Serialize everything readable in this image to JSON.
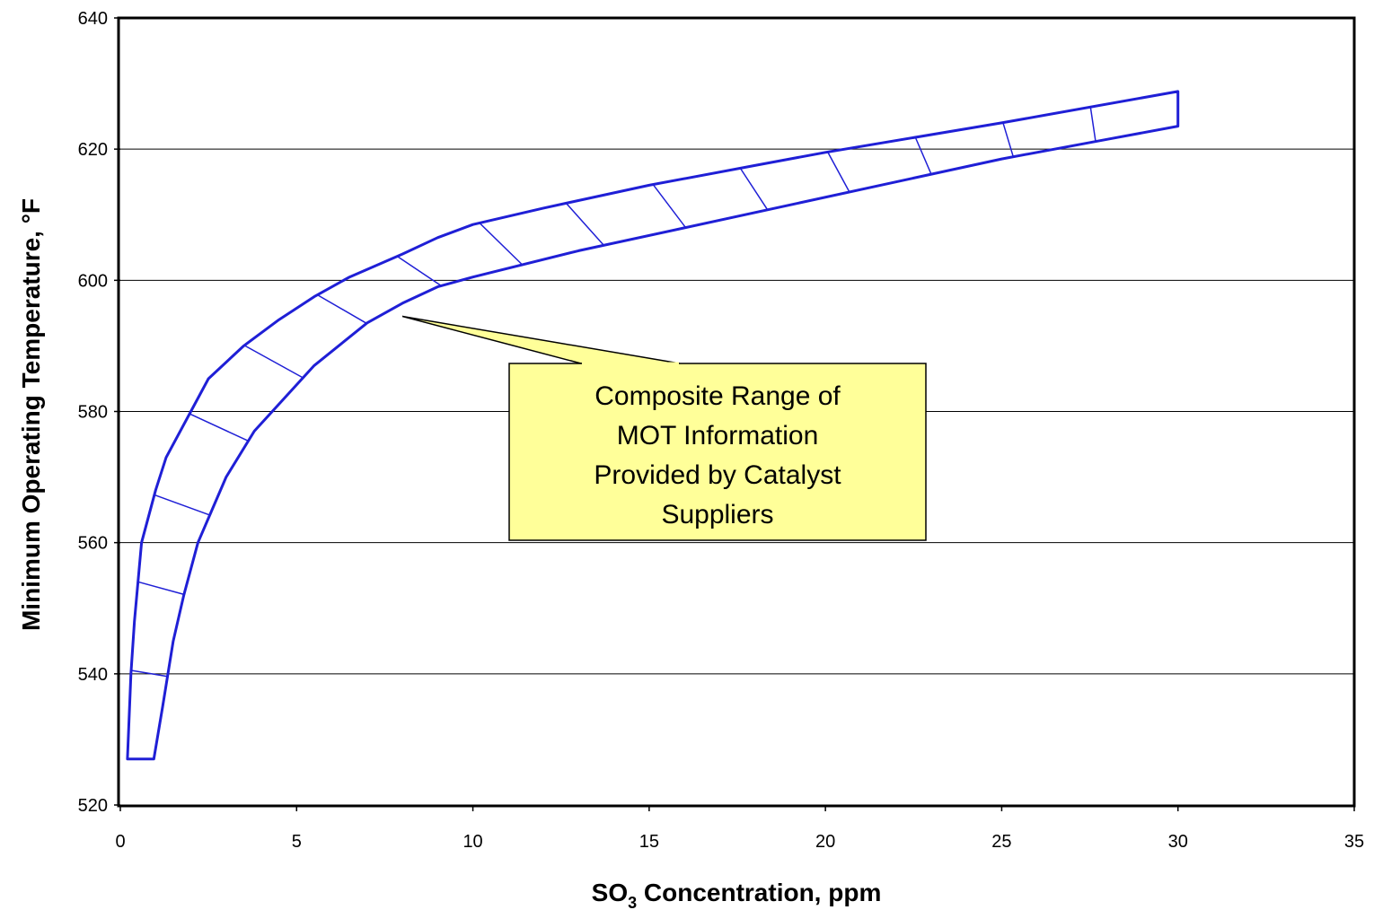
{
  "chart_data": {
    "type": "area",
    "xlabel": "SO",
    "xlabel_subscript": "3",
    "xlabel_suffix": " Concentration, ppm",
    "ylabel": "Minimum Operating Temperature, °F",
    "xlim": [
      0,
      35
    ],
    "ylim": [
      520,
      640
    ],
    "x_ticks": [
      0,
      5,
      10,
      15,
      20,
      25,
      30,
      35
    ],
    "y_ticks": [
      520,
      540,
      560,
      580,
      600,
      620,
      640
    ],
    "grid": "horizontal",
    "band": {
      "upper": [
        [
          0.2,
          527
        ],
        [
          0.3,
          540
        ],
        [
          0.4,
          548
        ],
        [
          0.6,
          560
        ],
        [
          1.0,
          568
        ],
        [
          1.3,
          573
        ],
        [
          2.0,
          580
        ],
        [
          2.5,
          585
        ],
        [
          3.5,
          590
        ],
        [
          4.5,
          594
        ],
        [
          5.5,
          597.5
        ],
        [
          6.5,
          600.5
        ],
        [
          8.0,
          604
        ],
        [
          9.0,
          606.5
        ],
        [
          10.0,
          608.5
        ],
        [
          12.0,
          611
        ],
        [
          15.0,
          614.5
        ],
        [
          18.0,
          617.5
        ],
        [
          20.0,
          619.5
        ],
        [
          25.0,
          624
        ],
        [
          30.0,
          628.8
        ]
      ],
      "lower": [
        [
          0.95,
          527
        ],
        [
          1.2,
          535
        ],
        [
          1.5,
          545
        ],
        [
          1.8,
          552
        ],
        [
          2.2,
          560
        ],
        [
          2.6,
          565
        ],
        [
          3.0,
          570
        ],
        [
          3.8,
          577
        ],
        [
          5.5,
          587
        ],
        [
          7.0,
          593.5
        ],
        [
          8.0,
          596.5
        ],
        [
          9.0,
          599
        ],
        [
          10.0,
          600.5
        ],
        [
          13.0,
          604.5
        ],
        [
          16.0,
          608
        ],
        [
          19.0,
          611.5
        ],
        [
          22.0,
          615
        ],
        [
          25.0,
          618.5
        ],
        [
          28.0,
          621.5
        ],
        [
          30.0,
          623.5
        ]
      ],
      "color": "#1f1fd6"
    },
    "annotations": [
      {
        "lines": [
          "Composite Range of",
          "MOT Information",
          "Provided by Catalyst",
          "Suppliers"
        ],
        "pointer": [
          8.0,
          594.5
        ],
        "box_color": "#ffff99"
      }
    ]
  }
}
